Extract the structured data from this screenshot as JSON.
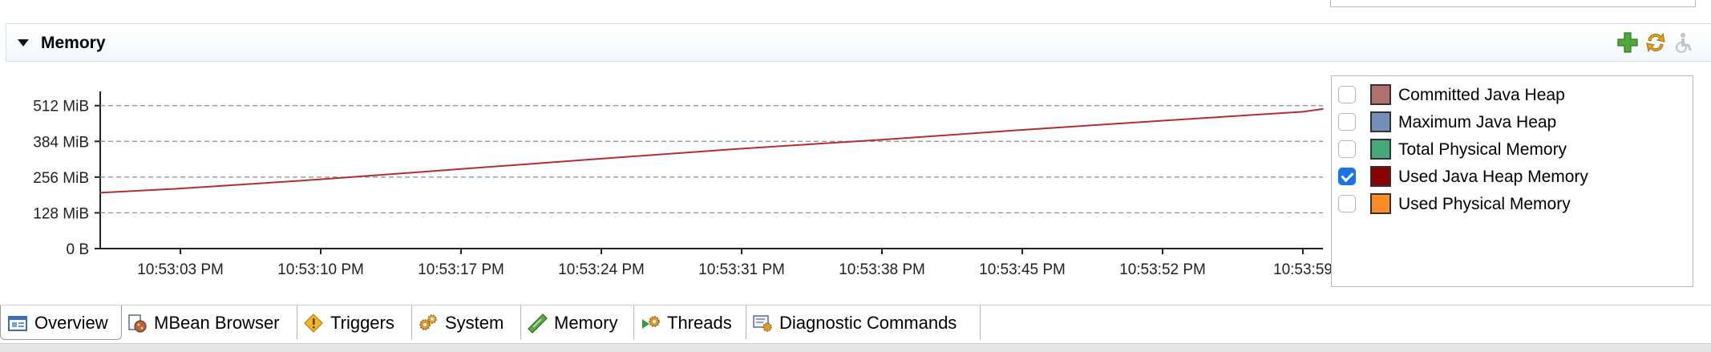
{
  "section": {
    "title": "Memory"
  },
  "toolbar": {
    "icons": [
      "add-chart-icon",
      "refresh-icon",
      "accessibility-icon"
    ]
  },
  "chart_data": {
    "type": "line",
    "title": "",
    "xlabel": "",
    "ylabel": "",
    "y_ticks": [
      "0 B",
      "128 MiB",
      "256 MiB",
      "384 MiB",
      "512 MiB"
    ],
    "y_tick_values": [
      0,
      128,
      256,
      384,
      512
    ],
    "ylim": [
      0,
      560
    ],
    "y_unit": "MiB",
    "x_ticks": [
      "10:53:03 PM",
      "10:53:10 PM",
      "10:53:17 PM",
      "10:53:24 PM",
      "10:53:31 PM",
      "10:53:38 PM",
      "10:53:45 PM",
      "10:53:52 PM",
      "10:53:59"
    ],
    "grid": true,
    "series": [
      {
        "name": "Used Java Heap Memory",
        "color": "#b03030",
        "x": [
          "10:52:59 PM",
          "10:53:03 PM",
          "10:53:10 PM",
          "10:53:17 PM",
          "10:53:24 PM",
          "10:53:31 PM",
          "10:53:38 PM",
          "10:53:45 PM",
          "10:53:52 PM",
          "10:53:59 PM",
          "10:54:00 PM"
        ],
        "values": [
          200,
          215,
          248,
          285,
          322,
          358,
          390,
          425,
          458,
          490,
          500
        ]
      }
    ]
  },
  "legend": [
    {
      "label": "Committed Java Heap",
      "color": "#b07070",
      "checked": false
    },
    {
      "label": "Maximum Java Heap",
      "color": "#7490b8",
      "checked": false
    },
    {
      "label": "Total Physical Memory",
      "color": "#45a878",
      "checked": false
    },
    {
      "label": "Used Java Heap Memory",
      "color": "#8b0000",
      "checked": true
    },
    {
      "label": "Used Physical Memory",
      "color": "#ff8a2a",
      "checked": false
    }
  ],
  "tabs": [
    {
      "label": "Overview",
      "icon": "overview-icon",
      "active": true
    },
    {
      "label": "MBean Browser",
      "icon": "mbean-browser-icon",
      "active": false
    },
    {
      "label": "Triggers",
      "icon": "triggers-icon",
      "active": false
    },
    {
      "label": "System",
      "icon": "system-gears-icon",
      "active": false
    },
    {
      "label": "Memory",
      "icon": "memory-icon",
      "active": false
    },
    {
      "label": "Threads",
      "icon": "threads-icon",
      "active": false
    },
    {
      "label": "Diagnostic Commands",
      "icon": "diagnostic-commands-icon",
      "active": false
    }
  ]
}
